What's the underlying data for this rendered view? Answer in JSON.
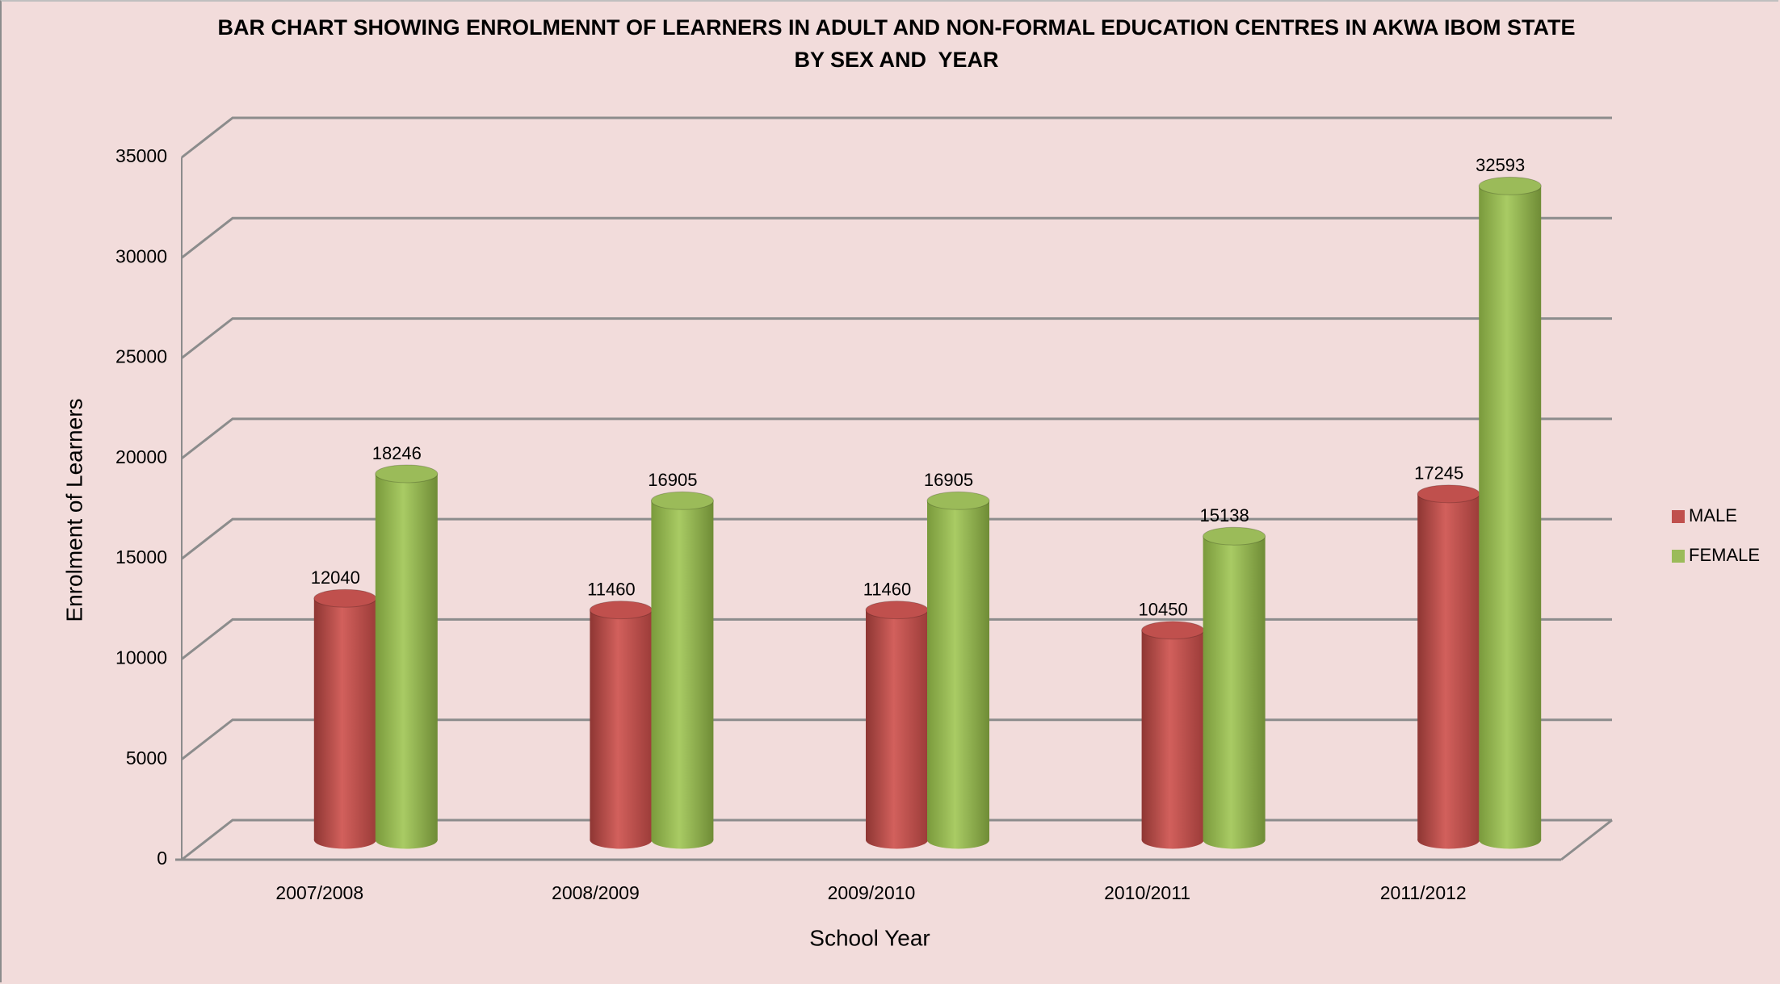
{
  "chart_data": {
    "type": "bar",
    "title": "BAR CHART SHOWING ENROLMENNT OF LEARNERS IN ADULT AND NON-FORMAL EDUCATION CENTRES IN AKWA IBOM STATE BY SEX AND  YEAR",
    "x_label": "School Year",
    "y_label": "Enrolment of Learners",
    "categories": [
      "2007/2008",
      "2008/2009",
      "2009/2010",
      "2010/2011",
      "2011/2012"
    ],
    "series": [
      {
        "name": "MALE",
        "color": "#c0504d",
        "values": [
          12040,
          11460,
          11460,
          10450,
          17245
        ]
      },
      {
        "name": "FEMALE",
        "color": "#9bbb59",
        "values": [
          18246,
          16905,
          16905,
          15138,
          32593
        ]
      }
    ],
    "ylim": [
      0,
      35000
    ],
    "yticks": [
      0,
      5000,
      10000,
      15000,
      20000,
      25000,
      30000,
      35000
    ],
    "grid": true,
    "legend": "right"
  }
}
